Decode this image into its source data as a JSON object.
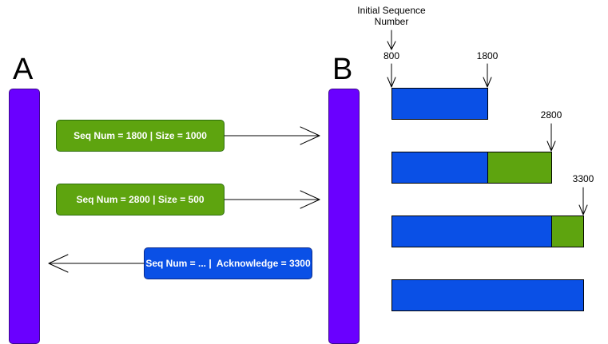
{
  "colors": {
    "host": "#6a00ff",
    "message_green": "#5ea40f",
    "message_blue": "#0a50e6",
    "buffer_blue": "#0a50e6",
    "buffer_green": "#5ea40f",
    "arrow": "#000000"
  },
  "hosts": {
    "a_label": "A",
    "b_label": "B"
  },
  "messages": [
    {
      "text": "Seq Num = 1800 | Size = 1000",
      "direction": "A-to-B",
      "color": "green"
    },
    {
      "text": "Seq Num = 2800 | Size = 500",
      "direction": "A-to-B",
      "color": "green"
    },
    {
      "text": "Seq Num = ... |  Acknowledge = 3300",
      "direction": "B-to-A",
      "color": "blue"
    }
  ],
  "sequence": {
    "initial_label": "Initial Sequence\nNumber",
    "markers": [
      "800",
      "1800",
      "2800",
      "3300"
    ]
  },
  "buffer_rows": [
    {
      "segments": [
        {
          "color": "blue",
          "from": 800,
          "to": 1800
        }
      ]
    },
    {
      "segments": [
        {
          "color": "blue",
          "from": 800,
          "to": 1800
        },
        {
          "color": "green",
          "from": 1800,
          "to": 2800
        }
      ]
    },
    {
      "segments": [
        {
          "color": "blue",
          "from": 800,
          "to": 2800
        },
        {
          "color": "green",
          "from": 2800,
          "to": 3300
        }
      ]
    },
    {
      "segments": [
        {
          "color": "blue",
          "from": 800,
          "to": 3300
        }
      ]
    }
  ]
}
